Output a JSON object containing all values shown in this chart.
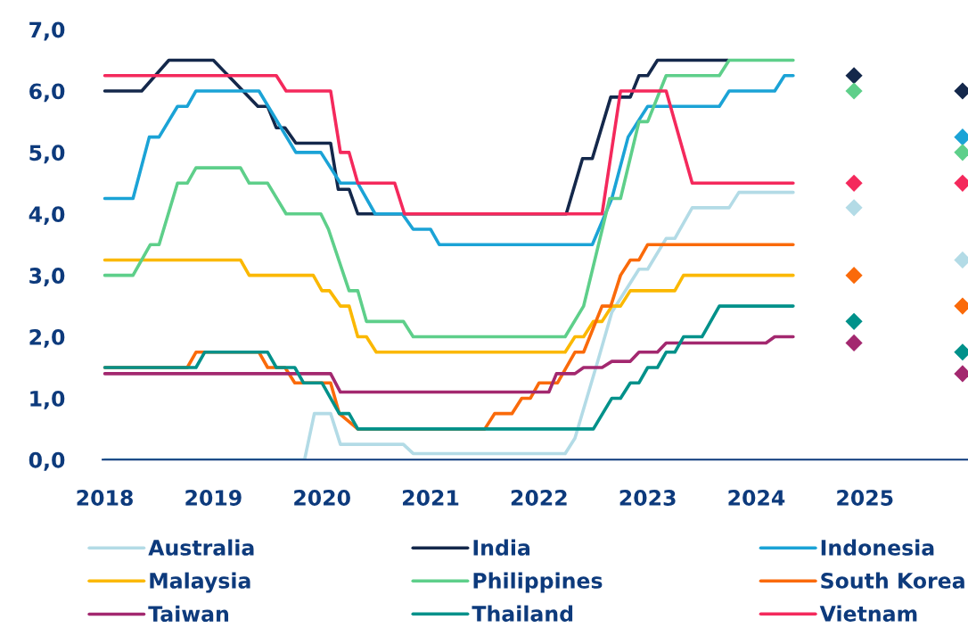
{
  "chart_data": {
    "type": "line",
    "xlim": [
      2017.98,
      2025.95
    ],
    "xticks": [
      2018,
      2019,
      2020,
      2021,
      2022,
      2023,
      2024,
      2025
    ],
    "ylim": [
      0,
      7
    ],
    "yticks": [
      {
        "value": 0,
        "label": "0,0"
      },
      {
        "value": 1,
        "label": "1,0"
      },
      {
        "value": 2,
        "label": "2,0"
      },
      {
        "value": 3,
        "label": "3,0"
      },
      {
        "value": 4,
        "label": "4,0"
      },
      {
        "value": 5,
        "label": "5,0"
      },
      {
        "value": 6,
        "label": "6,0"
      },
      {
        "value": 7,
        "label": "7,0"
      }
    ],
    "grid": false,
    "legend": "bottom",
    "series": [
      {
        "name": "Australia",
        "color": "#b3dbe6",
        "x": [
          2018,
          2019.84,
          2019.93,
          2020.08,
          2020.17,
          2020.75,
          2020.84,
          2022.24,
          2022.33,
          2022.54,
          2022.67,
          2022.92,
          2023.0,
          2023.17,
          2023.25,
          2023.41,
          2023.75,
          2023.84,
          2024.34
        ],
        "values": [
          0,
          0,
          0.75,
          0.75,
          0.25,
          0.25,
          0.1,
          0.1,
          0.35,
          1.6,
          2.4,
          3.1,
          3.1,
          3.6,
          3.6,
          4.1,
          4.1,
          4.35,
          4.35
        ]
      },
      {
        "name": "India",
        "color": "#14284b",
        "x": [
          2018,
          2018.34,
          2018.59,
          2019.0,
          2019.41,
          2019.5,
          2019.58,
          2019.66,
          2019.76,
          2020.08,
          2020.15,
          2020.25,
          2020.33,
          2022.25,
          2022.4,
          2022.49,
          2022.66,
          2022.84,
          2022.92,
          2023.0,
          2023.09,
          2023.74
        ],
        "values": [
          6,
          6,
          6.5,
          6.5,
          5.75,
          5.75,
          5.4,
          5.4,
          5.15,
          5.15,
          4.4,
          4.4,
          4,
          4,
          4.9,
          4.9,
          5.9,
          5.9,
          6.25,
          6.25,
          6.5,
          6.5
        ]
      },
      {
        "name": "Indonesia",
        "color": "#1ba3d6",
        "x": [
          2018,
          2018.26,
          2018.41,
          2018.5,
          2018.67,
          2018.76,
          2018.84,
          2019.42,
          2019.76,
          2019.99,
          2020.17,
          2020.33,
          2020.49,
          2020.74,
          2020.84,
          2021.0,
          2021.08,
          2022.49,
          2022.67,
          2022.82,
          2023.0,
          2023.66,
          2023.75,
          2024.17,
          2024.26,
          2024.34
        ],
        "values": [
          4.25,
          4.25,
          5.25,
          5.25,
          5.75,
          5.75,
          6,
          6,
          5,
          5,
          4.5,
          4.5,
          4,
          4,
          3.75,
          3.75,
          3.5,
          3.5,
          4.25,
          5.25,
          5.75,
          5.75,
          6,
          6,
          6.25,
          6.25
        ]
      },
      {
        "name": "Malaysia",
        "color": "#fbb800",
        "x": [
          2018,
          2019.25,
          2019.33,
          2019.92,
          2020.0,
          2020.07,
          2020.17,
          2020.25,
          2020.33,
          2020.41,
          2020.5,
          2022.24,
          2022.33,
          2022.41,
          2022.5,
          2022.58,
          2022.67,
          2022.75,
          2022.84,
          2023.25,
          2023.33,
          2024.34
        ],
        "values": [
          3.25,
          3.25,
          3,
          3,
          2.75,
          2.75,
          2.5,
          2.5,
          2,
          2,
          1.75,
          1.75,
          2,
          2,
          2.25,
          2.25,
          2.5,
          2.5,
          2.75,
          2.75,
          3,
          3
        ]
      },
      {
        "name": "Philippines",
        "color": "#5ecf8a",
        "x": [
          2018,
          2018.26,
          2018.42,
          2018.5,
          2018.67,
          2018.76,
          2018.84,
          2019.25,
          2019.33,
          2019.5,
          2019.67,
          2019.99,
          2020.06,
          2020.25,
          2020.33,
          2020.41,
          2020.75,
          2020.84,
          2022.24,
          2022.41,
          2022.65,
          2022.75,
          2022.92,
          2023.0,
          2023.17,
          2023.66,
          2023.75,
          2024.34
        ],
        "values": [
          3,
          3,
          3.5,
          3.5,
          4.5,
          4.5,
          4.75,
          4.75,
          4.5,
          4.5,
          4,
          4,
          3.75,
          2.75,
          2.75,
          2.25,
          2.25,
          2,
          2,
          2.5,
          4.25,
          4.25,
          5.5,
          5.5,
          6.25,
          6.25,
          6.5,
          6.5
        ]
      },
      {
        "name": "South Korea",
        "color": "#fa6a0a",
        "x": [
          2018,
          2018.76,
          2018.84,
          2019.42,
          2019.5,
          2019.66,
          2019.75,
          2020.08,
          2020.16,
          2020.33,
          2021.5,
          2021.59,
          2021.75,
          2021.84,
          2021.92,
          2022.0,
          2022.17,
          2022.33,
          2022.41,
          2022.58,
          2022.66,
          2022.75,
          2022.84,
          2022.92,
          2023.0,
          2024.34
        ],
        "values": [
          1.5,
          1.5,
          1.75,
          1.75,
          1.5,
          1.5,
          1.25,
          1.25,
          0.75,
          0.5,
          0.5,
          0.75,
          0.75,
          1,
          1,
          1.25,
          1.25,
          1.75,
          1.75,
          2.5,
          2.5,
          3,
          3.25,
          3.25,
          3.5,
          3.5
        ]
      },
      {
        "name": "Taiwan",
        "color": "#a3286f",
        "x": [
          2018,
          2020.08,
          2020.17,
          2022.09,
          2022.16,
          2022.33,
          2022.41,
          2022.58,
          2022.67,
          2022.84,
          2022.92,
          2023.09,
          2023.17,
          2024.09,
          2024.17,
          2024.34
        ],
        "values": [
          1.4,
          1.4,
          1.1,
          1.1,
          1.4,
          1.4,
          1.5,
          1.5,
          1.6,
          1.6,
          1.75,
          1.75,
          1.9,
          1.9,
          2,
          2
        ]
      },
      {
        "name": "Thailand",
        "color": "#00918a",
        "x": [
          2018,
          2018.84,
          2018.92,
          2019.5,
          2019.58,
          2019.75,
          2019.83,
          2020.0,
          2020.16,
          2020.25,
          2020.33,
          2022.5,
          2022.67,
          2022.75,
          2022.84,
          2022.92,
          2023.0,
          2023.09,
          2023.17,
          2023.25,
          2023.33,
          2023.5,
          2023.66,
          2024.34
        ],
        "values": [
          1.5,
          1.5,
          1.75,
          1.75,
          1.5,
          1.5,
          1.25,
          1.25,
          0.75,
          0.75,
          0.5,
          0.5,
          1,
          1,
          1.25,
          1.25,
          1.5,
          1.5,
          1.75,
          1.75,
          2,
          2,
          2.5,
          2.5
        ]
      },
      {
        "name": "Vietnam",
        "color": "#f4295c",
        "x": [
          2018,
          2019.58,
          2019.67,
          2020.08,
          2020.17,
          2020.25,
          2020.33,
          2020.67,
          2020.76,
          2022.58,
          2022.75,
          2023.17,
          2023.41,
          2024.34
        ],
        "values": [
          6.25,
          6.25,
          6,
          6,
          5,
          5,
          4.5,
          4.5,
          4,
          4,
          6,
          6,
          4.5,
          4.5
        ]
      },
      {
        "type": "scatter",
        "marker": "diamond",
        "color": "#b3dbe6",
        "x": [
          2024.9,
          2025.9
        ],
        "values": [
          4.1,
          3.25
        ]
      },
      {
        "type": "scatter",
        "marker": "diamond",
        "color": "#14284b",
        "x": [
          2024.9,
          2025.9
        ],
        "values": [
          6.25,
          6.0
        ]
      },
      {
        "type": "scatter",
        "marker": "diamond",
        "color": "#1ba3d6",
        "x": [
          2025.9
        ],
        "values": [
          5.25
        ]
      },
      {
        "type": "scatter",
        "marker": "diamond",
        "color": "#5ecf8a",
        "x": [
          2024.9,
          2025.9
        ],
        "values": [
          6.0,
          5.0
        ]
      },
      {
        "type": "scatter",
        "marker": "diamond",
        "color": "#fa6a0a",
        "x": [
          2024.9,
          2025.9
        ],
        "values": [
          3.0,
          2.5
        ]
      },
      {
        "type": "scatter",
        "marker": "diamond",
        "color": "#a3286f",
        "x": [
          2024.9,
          2025.9
        ],
        "values": [
          1.9,
          1.4
        ]
      },
      {
        "type": "scatter",
        "marker": "diamond",
        "color": "#00918a",
        "x": [
          2024.9,
          2025.9
        ],
        "values": [
          2.25,
          1.75
        ]
      },
      {
        "type": "scatter",
        "marker": "diamond",
        "color": "#f4295c",
        "x": [
          2024.9,
          2025.9
        ],
        "values": [
          4.5,
          4.5
        ]
      }
    ]
  }
}
